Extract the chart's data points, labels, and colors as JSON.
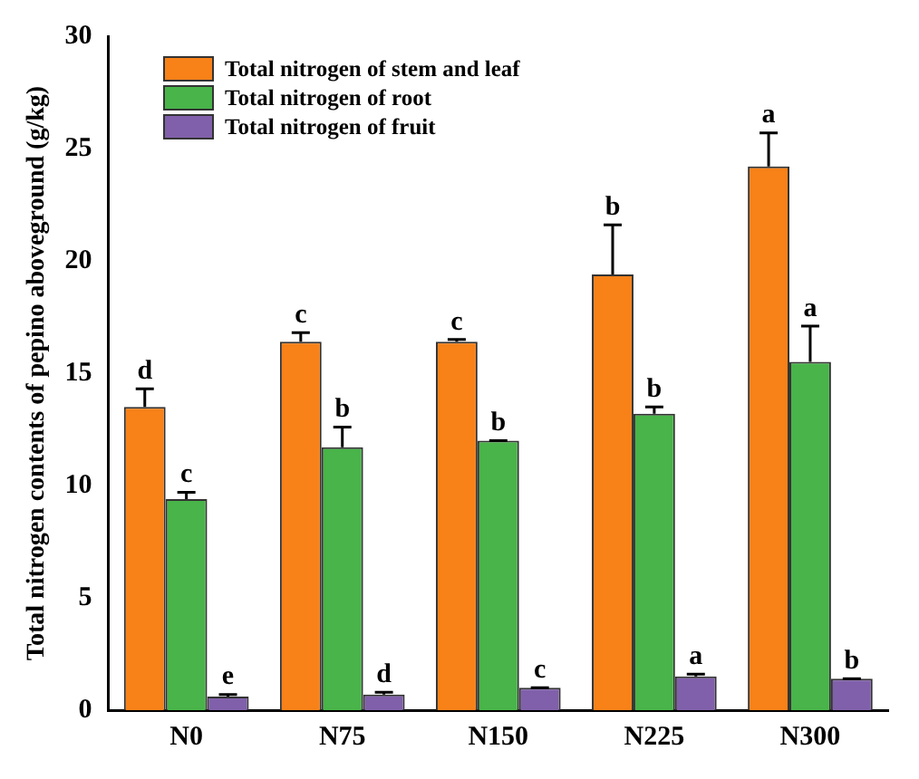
{
  "chart_data": {
    "type": "bar",
    "ylabel": "Total nitrogen contents of pepino aboveground (g/kg)",
    "categories": [
      "N0",
      "N75",
      "N150",
      "N225",
      "N300"
    ],
    "series": [
      {
        "name": "Total nitrogen of stem and leaf",
        "color": "#f88118",
        "values": [
          13.5,
          16.4,
          16.4,
          19.4,
          24.2
        ],
        "errors": [
          [
            13.5,
            14.3
          ],
          [
            16.4,
            16.8
          ],
          [
            16.4,
            16.5
          ],
          [
            19.4,
            21.6
          ],
          [
            24.2,
            25.7
          ]
        ],
        "value_labels": [
          "d",
          "c",
          "c",
          "b",
          "a"
        ]
      },
      {
        "name": "Total nitrogen of root",
        "color": "#48b449",
        "values": [
          9.4,
          11.7,
          12.0,
          13.2,
          15.5
        ],
        "errors": [
          [
            9.4,
            9.7
          ],
          [
            11.7,
            12.6
          ],
          [
            12.0,
            12.0
          ],
          [
            13.2,
            13.5
          ],
          [
            15.5,
            17.1
          ]
        ],
        "value_labels": [
          "c",
          "b",
          "b",
          "b",
          "a"
        ]
      },
      {
        "name": "Total nitrogen of fruit",
        "color": "#8060aa",
        "values": [
          0.6,
          0.7,
          1.0,
          1.5,
          1.4
        ],
        "errors": [
          [
            0.6,
            0.7
          ],
          [
            0.7,
            0.8
          ],
          [
            1.0,
            1.0
          ],
          [
            1.5,
            1.6
          ],
          [
            1.4,
            1.4
          ]
        ],
        "value_labels": [
          "e",
          "d",
          "c",
          "a",
          "b"
        ]
      }
    ],
    "ylim": [
      0,
      30
    ],
    "yticks": [
      0,
      5,
      10,
      15,
      20,
      25,
      30
    ],
    "grid": false,
    "legend": "top left"
  }
}
